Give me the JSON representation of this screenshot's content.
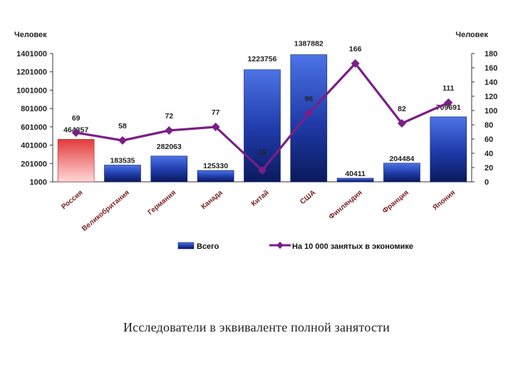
{
  "chart_data": {
    "type": "bar",
    "categories": [
      "Россия",
      "Великобритания",
      "Германия",
      "Канада",
      "Китай",
      "США",
      "Финляндия",
      "Франция",
      "Япония"
    ],
    "series": [
      {
        "name": "Всего",
        "kind": "bar",
        "axis": "left",
        "values": [
          464357,
          183535,
          282063,
          125330,
          1223756,
          1387882,
          40411,
          204484,
          709691
        ],
        "labels": [
          "464357",
          "183535",
          "282063",
          "125330",
          "1223756",
          "1387882",
          "40411",
          "204484",
          "709691"
        ]
      },
      {
        "name": "На 10 000 занятых в экономике",
        "kind": "line",
        "axis": "right",
        "values": [
          69,
          58,
          72,
          77,
          16,
          96,
          166,
          82,
          111
        ],
        "labels": [
          "69",
          "58",
          "72",
          "77",
          "16",
          "96",
          "166",
          "82",
          "111"
        ]
      }
    ],
    "ylabel_left": "Человек",
    "ylabel_right": "Человек",
    "ylim_left": [
      1000,
      1401000
    ],
    "yticks_left": [
      "1401000",
      "1201000",
      "1001000",
      "801000",
      "601000",
      "401000",
      "201000",
      "1000"
    ],
    "ylim_right": [
      0,
      180
    ],
    "yticks_right": [
      "180",
      "160",
      "140",
      "120",
      "100",
      "80",
      "60",
      "40",
      "20",
      "0"
    ],
    "legend": "bottom",
    "grid": false,
    "highlight_category": "Россия",
    "colors": {
      "bar": "#1f3aa8",
      "bar_highlight": "#e23a3a",
      "line": "#7a1f86"
    }
  },
  "caption": "Исследователи в эквиваленте полной занятости"
}
